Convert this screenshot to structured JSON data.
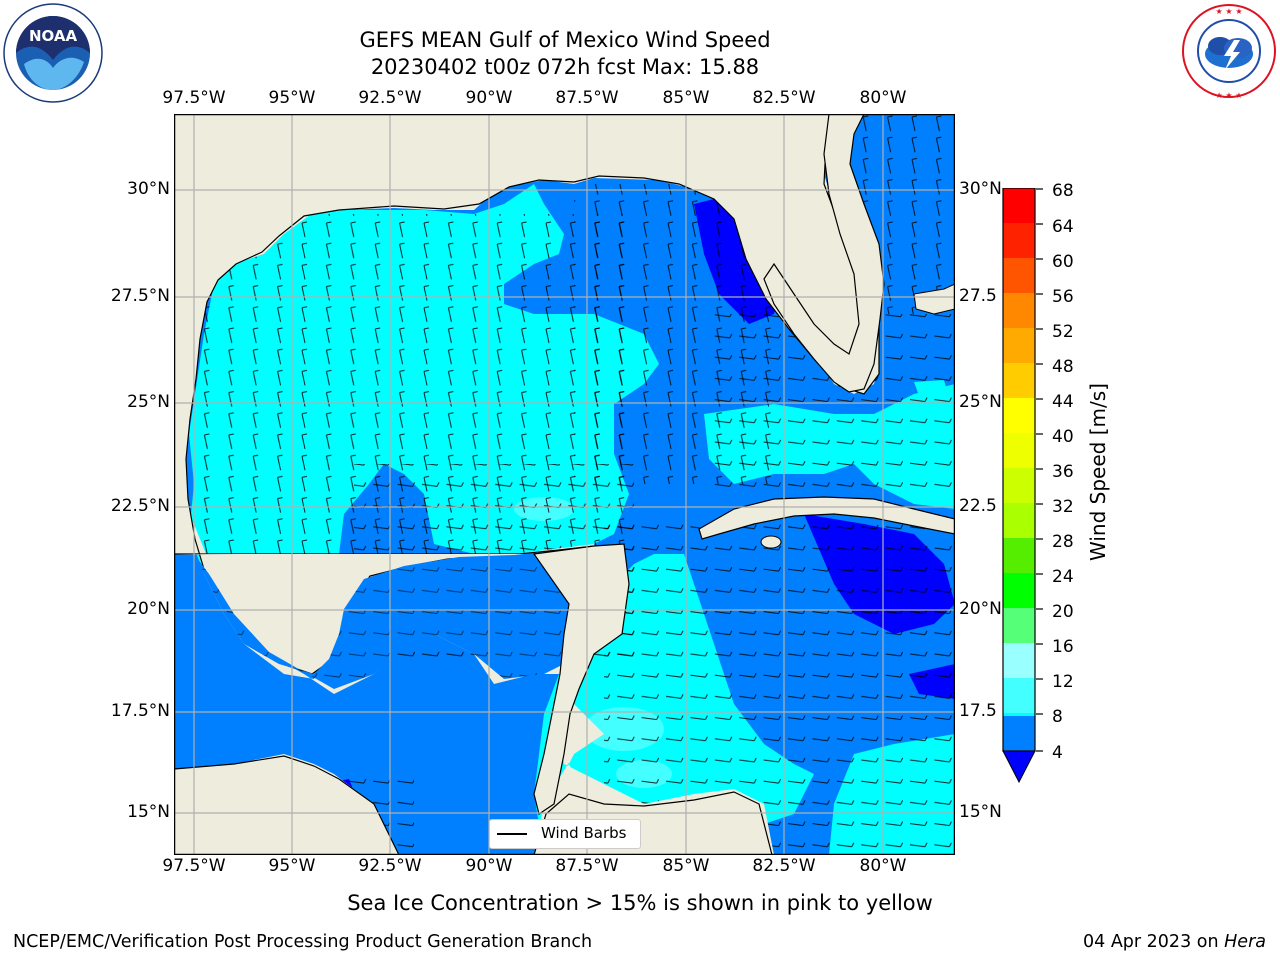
{
  "title": {
    "line1": "GEFS MEAN Gulf of Mexico Wind Speed",
    "line2": "20230402 t00z 072h fcst   Max: 15.88"
  },
  "logos": {
    "left": {
      "icon": "noaa-logo",
      "abbr": "NOAA",
      "ring_text": "NATIONAL OCEANIC AND ATMOSPHERIC ADMINISTRATION · U.S. DEPARTMENT OF COMMERCE"
    },
    "right": {
      "icon": "nws-logo",
      "ring_text": "NATIONAL WEATHER SERVICE"
    }
  },
  "map": {
    "lon_labels": [
      "97.5°W",
      "95°W",
      "92.5°W",
      "90°W",
      "87.5°W",
      "85°W",
      "82.5°W",
      "80°W"
    ],
    "lat_labels": [
      "30°N",
      "27.5°N",
      "25°N",
      "22.5°N",
      "20°N",
      "17.5°N",
      "15°N"
    ],
    "lat_labels_right": [
      "30°N",
      "27.5",
      "25°N",
      "22.5",
      "20°N",
      "17.5",
      "15°N"
    ],
    "legend_label": "Wind Barbs",
    "land_color": "#eeecdd",
    "coast_color": "#000000"
  },
  "colorbar": {
    "label": "Wind Speed [m/s]",
    "ticks": [
      "4",
      "8",
      "12",
      "16",
      "20",
      "24",
      "28",
      "32",
      "36",
      "40",
      "44",
      "48",
      "52",
      "56",
      "60",
      "64",
      "68"
    ],
    "colors": [
      "#0080ff",
      "#00ffff",
      "#44ffff",
      "#99ffff",
      "#55ff77",
      "#22dd22",
      "#00ff00",
      "#55ff00",
      "#aaff00",
      "#ccff00",
      "#eeff00",
      "#ffff00",
      "#ffcc00",
      "#ffaa00",
      "#ff8800",
      "#ff5500",
      "#ff2200",
      "#ff0000"
    ],
    "under_color": "#0000ff"
  },
  "note": "Sea Ice Concentration > 15% is shown in pink to yellow",
  "footer": {
    "left": "NCEP/EMC/Verification Post Processing Product Generation Branch",
    "date": "04 Apr 2023 on ",
    "machine": "Hera"
  }
}
